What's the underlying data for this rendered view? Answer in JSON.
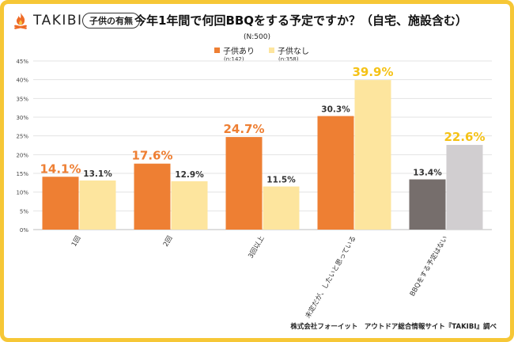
{
  "brand": {
    "logo_text": "TAKIBI"
  },
  "header": {
    "badge": "子供の有無",
    "title": "今年1年間で何回BBQをする予定ですか？（自宅、施設含む）"
  },
  "sample_size": "(N:500)",
  "legend": [
    {
      "label": "子供あり",
      "n": "(n:142)",
      "color": "#ee7f33"
    },
    {
      "label": "子供なし",
      "n": "(n:358)",
      "color": "#fde59e"
    }
  ],
  "footer": "株式会社フォーイット　アウトドア総合情報サイト『TAKIBI』調べ",
  "colors": {
    "accent_border": "#f6c736",
    "with_kids": "#ee7f33",
    "without_kids": "#fde59e",
    "highlight_label": "#f5c216",
    "no_plan_with": "#766e6c",
    "no_plan_without": "#d1ced0"
  },
  "chart_data": {
    "type": "bar",
    "categories": [
      "1回",
      "2回",
      "3回以上",
      "未定だが、したいと思っている",
      "BBQをする予定はない"
    ],
    "series": [
      {
        "name": "子供あり",
        "values": [
          14.1,
          17.6,
          24.7,
          30.3,
          13.4
        ]
      },
      {
        "name": "子供なし",
        "values": [
          13.1,
          12.9,
          11.5,
          39.9,
          22.6
        ]
      }
    ],
    "data_labels": [
      [
        "14.1%",
        "17.6%",
        "24.7%",
        "30.3%",
        "13.4%"
      ],
      [
        "13.1%",
        "12.9%",
        "11.5%",
        "39.9%",
        "22.6%"
      ]
    ],
    "yticks": [
      "0%",
      "5%",
      "10%",
      "15%",
      "20%",
      "25%",
      "30%",
      "35%",
      "40%",
      "45%"
    ],
    "ylim": [
      0,
      45
    ],
    "grid": true
  }
}
